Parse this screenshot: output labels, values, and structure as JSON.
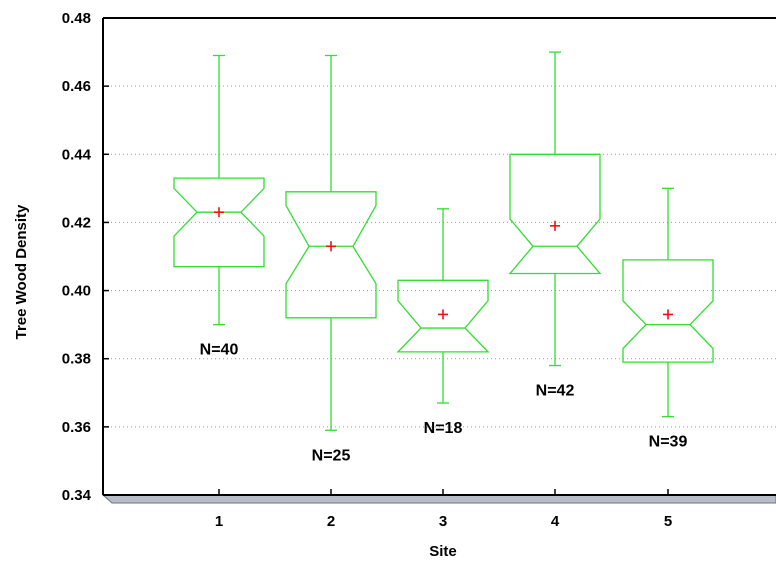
{
  "chart_data": {
    "type": "box",
    "xlabel": "Site",
    "ylabel": "Tree Wood Density",
    "ylim": [
      0.34,
      0.48
    ],
    "yticks": [
      "0.34",
      "0.36",
      "0.38",
      "0.40",
      "0.42",
      "0.44",
      "0.46",
      "0.48"
    ],
    "grid": true,
    "notched": true,
    "box_color": "#33dd33",
    "mean_color": "#ee1111",
    "categories": [
      "1",
      "2",
      "3",
      "4",
      "5"
    ],
    "boxes": [
      {
        "site": "1",
        "whisker_low": 0.39,
        "q1": 0.407,
        "notch_low": 0.416,
        "median": 0.423,
        "notch_high": 0.43,
        "q3": 0.433,
        "whisker_high": 0.469,
        "mean": 0.423,
        "n_label": "N=40"
      },
      {
        "site": "2",
        "whisker_low": 0.359,
        "q1": 0.392,
        "notch_low": 0.402,
        "median": 0.413,
        "notch_high": 0.425,
        "q3": 0.429,
        "whisker_high": 0.469,
        "mean": 0.413,
        "n_label": "N=25"
      },
      {
        "site": "3",
        "whisker_low": 0.367,
        "q1": 0.382,
        "notch_low": 0.382,
        "median": 0.389,
        "notch_high": 0.397,
        "q3": 0.403,
        "whisker_high": 0.424,
        "mean": 0.393,
        "n_label": "N=18"
      },
      {
        "site": "4",
        "whisker_low": 0.378,
        "q1": 0.405,
        "notch_low": 0.405,
        "median": 0.413,
        "notch_high": 0.421,
        "q3": 0.44,
        "whisker_high": 0.47,
        "mean": 0.419,
        "n_label": "N=42"
      },
      {
        "site": "5",
        "whisker_low": 0.363,
        "q1": 0.379,
        "notch_low": 0.383,
        "median": 0.39,
        "notch_high": 0.397,
        "q3": 0.409,
        "whisker_high": 0.43,
        "mean": 0.393,
        "n_label": "N=39"
      }
    ]
  }
}
